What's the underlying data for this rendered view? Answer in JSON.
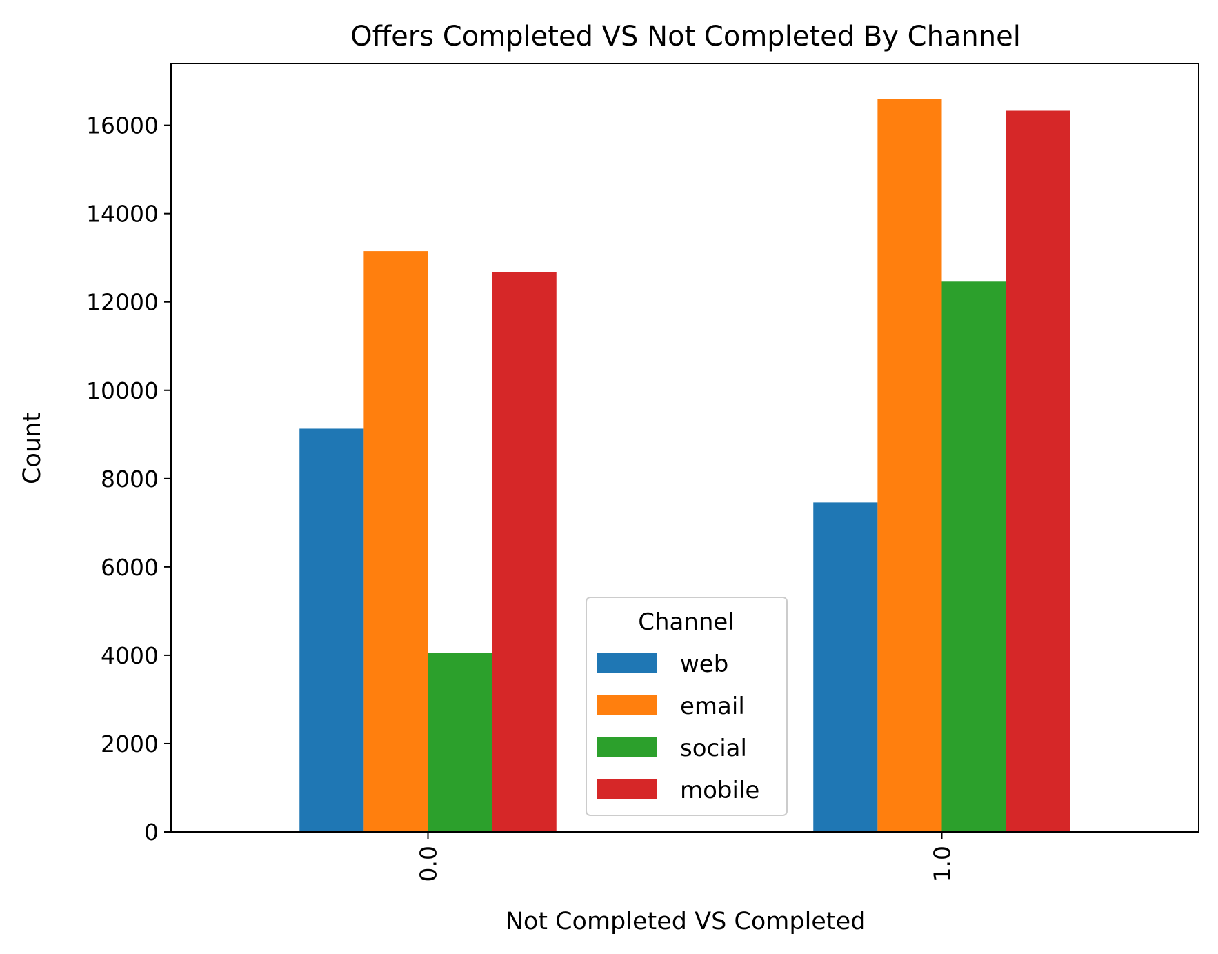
{
  "chart_data": {
    "type": "bar",
    "title": "Offers Completed VS Not Completed By Channel",
    "xlabel": "Not Completed VS Completed",
    "ylabel": "Count",
    "categories": [
      "0.0",
      "1.0"
    ],
    "series": [
      {
        "name": "web",
        "color": "#1f77b4",
        "values": [
          9130,
          7460
        ]
      },
      {
        "name": "email",
        "color": "#ff7f0e",
        "values": [
          13150,
          16600
        ]
      },
      {
        "name": "social",
        "color": "#2ca02c",
        "values": [
          4060,
          12460
        ]
      },
      {
        "name": "mobile",
        "color": "#d62728",
        "values": [
          12680,
          16330
        ]
      }
    ],
    "ylim": [
      0,
      17400
    ],
    "yticks": [
      0,
      2000,
      4000,
      6000,
      8000,
      10000,
      12000,
      14000,
      16000
    ],
    "ytick_labels": [
      "0",
      "2000",
      "4000",
      "6000",
      "8000",
      "10000",
      "12000",
      "14000",
      "16000"
    ],
    "legend": {
      "title": "Channel",
      "placement": "lower-center"
    },
    "grid": false
  }
}
